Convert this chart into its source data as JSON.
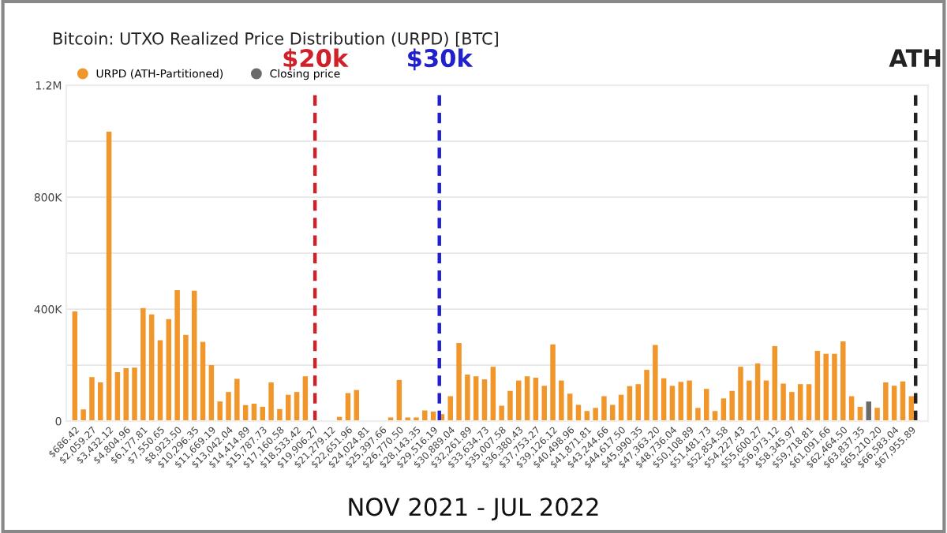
{
  "chart_data": {
    "type": "bar",
    "title": "Bitcoin: UTXO Realized Price Distribution (URPD) [BTC]",
    "x": [
      686.42,
      1372.85,
      2059.27,
      2745.7,
      3432.12,
      4118.54,
      4804.96,
      5491.39,
      6177.81,
      6864.23,
      7550.65,
      8237.08,
      8923.5,
      9609.93,
      10296.35,
      10982.77,
      11669.19,
      12355.62,
      13042.04,
      13728.47,
      14414.89,
      15101.31,
      15787.73,
      16474.16,
      17160.58,
      17847.0,
      18533.42,
      19219.85,
      19906.27,
      20592.7,
      21279.12,
      21965.54,
      22651.96,
      23338.39,
      24024.81,
      24711.23,
      25397.66,
      26084.08,
      26770.5,
      27456.93,
      28143.35,
      28829.77,
      29516.19,
      30202.62,
      30889.04,
      31575.47,
      32261.89,
      32948.31,
      33634.73,
      34321.16,
      35007.58,
      35694.0,
      36380.43,
      37066.85,
      37753.27,
      38439.7,
      39126.12,
      39812.54,
      40498.96,
      41185.39,
      41871.81,
      42558.23,
      43244.66,
      43931.08,
      44617.5,
      45303.93,
      45990.35,
      46676.77,
      47363.2,
      48049.62,
      48736.04,
      49422.47,
      50108.89,
      50795.31,
      51481.73,
      52168.16,
      52854.58,
      53541.0,
      54227.43,
      54913.85,
      55600.27,
      56286.7,
      56973.12,
      57659.54,
      58345.97,
      59032.39,
      59718.81,
      60405.23,
      61091.66,
      61778.08,
      62464.5,
      63150.93,
      63837.35,
      64523.77,
      65210.2,
      65896.62,
      66583.04,
      67269.47,
      67955.89
    ],
    "series": [
      {
        "name": "URPD (ATH-Partitioned)",
        "color": "#f0962a",
        "values": [
          392000,
          42000,
          157000,
          138000,
          1034000,
          175000,
          189000,
          191000,
          404000,
          381000,
          289000,
          364000,
          468000,
          308000,
          466000,
          283000,
          200000,
          70000,
          104000,
          151000,
          57000,
          62000,
          51000,
          138000,
          43000,
          94000,
          104000,
          160000,
          null,
          null,
          0,
          15000,
          100000,
          111000,
          null,
          0,
          0,
          13000,
          147000,
          13000,
          13000,
          38000,
          34000,
          25000,
          89000,
          279000,
          166000,
          160000,
          149000,
          194000,
          55000,
          108000,
          145000,
          160000,
          155000,
          126000,
          274000,
          145000,
          98000,
          58000,
          36000,
          47000,
          89000,
          58000,
          94000,
          125000,
          132000,
          183000,
          272000,
          153000,
          126000,
          140000,
          145000,
          47000,
          115000,
          36000,
          81000,
          108000,
          194000,
          145000,
          206000,
          145000,
          268000,
          134000,
          104000,
          132000,
          132000,
          251000,
          240000,
          240000,
          285000,
          89000,
          51000,
          null,
          47000,
          138000,
          126000,
          142000,
          89000
        ]
      },
      {
        "name": "Closing price",
        "color": "#6b6b6b",
        "values": [
          null,
          null,
          null,
          null,
          null,
          null,
          null,
          null,
          null,
          null,
          null,
          null,
          null,
          null,
          null,
          null,
          null,
          null,
          null,
          null,
          null,
          null,
          null,
          null,
          null,
          null,
          null,
          null,
          null,
          null,
          null,
          null,
          null,
          null,
          null,
          null,
          null,
          null,
          null,
          null,
          null,
          null,
          null,
          null,
          null,
          null,
          null,
          null,
          null,
          null,
          null,
          null,
          null,
          null,
          null,
          null,
          null,
          null,
          null,
          null,
          null,
          null,
          null,
          null,
          null,
          null,
          null,
          null,
          null,
          null,
          null,
          null,
          null,
          null,
          null,
          null,
          null,
          null,
          null,
          null,
          null,
          null,
          null,
          null,
          null,
          null,
          null,
          null,
          null,
          null,
          null,
          null,
          null,
          70000,
          null,
          null,
          null,
          null,
          null
        ]
      }
    ],
    "xlim": [
      0,
      69300
    ],
    "xticks": [
      {
        "value": 686.42,
        "label": "$686.42"
      },
      {
        "value": 2059.27,
        "label": "$2,059.27"
      },
      {
        "value": 3432.12,
        "label": "$3,432.12"
      },
      {
        "value": 4804.96,
        "label": "$4,804.96"
      },
      {
        "value": 6177.81,
        "label": "$6,177.81"
      },
      {
        "value": 7550.65,
        "label": "$7,550.65"
      },
      {
        "value": 8923.5,
        "label": "$8,923.50"
      },
      {
        "value": 10296.35,
        "label": "$10,296.35"
      },
      {
        "value": 11669.19,
        "label": "$11,669.19"
      },
      {
        "value": 13042.04,
        "label": "$13,042.04"
      },
      {
        "value": 14414.89,
        "label": "$14,414.89"
      },
      {
        "value": 15787.73,
        "label": "$15,787.73"
      },
      {
        "value": 17160.58,
        "label": "$17,160.58"
      },
      {
        "value": 18533.42,
        "label": "$18,533.42"
      },
      {
        "value": 19906.27,
        "label": "$19,906.27"
      },
      {
        "value": 21279.12,
        "label": "$21,279.12"
      },
      {
        "value": 22651.96,
        "label": "$22,651.96"
      },
      {
        "value": 24024.81,
        "label": "$24,024.81"
      },
      {
        "value": 25397.66,
        "label": "$25,397.66"
      },
      {
        "value": 26770.5,
        "label": "$26,770.50"
      },
      {
        "value": 28143.35,
        "label": "$28,143.35"
      },
      {
        "value": 29516.19,
        "label": "$29,516.19"
      },
      {
        "value": 30889.04,
        "label": "$30,889.04"
      },
      {
        "value": 32261.89,
        "label": "$32,261.89"
      },
      {
        "value": 33634.73,
        "label": "$33,634.73"
      },
      {
        "value": 35007.58,
        "label": "$35,007.58"
      },
      {
        "value": 36380.43,
        "label": "$36,380.43"
      },
      {
        "value": 37753.27,
        "label": "$37,753.27"
      },
      {
        "value": 39126.12,
        "label": "$39,126.12"
      },
      {
        "value": 40498.96,
        "label": "$40,498.96"
      },
      {
        "value": 41871.81,
        "label": "$41,871.81"
      },
      {
        "value": 43244.66,
        "label": "$43,244.66"
      },
      {
        "value": 44617.5,
        "label": "$44,617.50"
      },
      {
        "value": 45990.35,
        "label": "$45,990.35"
      },
      {
        "value": 47363.2,
        "label": "$47,363.20"
      },
      {
        "value": 48736.04,
        "label": "$48,736.04"
      },
      {
        "value": 50108.89,
        "label": "$50,108.89"
      },
      {
        "value": 51481.73,
        "label": "$51,481.73"
      },
      {
        "value": 52854.58,
        "label": "$52,854.58"
      },
      {
        "value": 54227.43,
        "label": "$54,227.43"
      },
      {
        "value": 55600.27,
        "label": "$55,600.27"
      },
      {
        "value": 56973.12,
        "label": "$56,973.12"
      },
      {
        "value": 58345.97,
        "label": "$58,345.97"
      },
      {
        "value": 59718.81,
        "label": "$59,718.81"
      },
      {
        "value": 61091.66,
        "label": "$61,091.66"
      },
      {
        "value": 62464.5,
        "label": "$62,464.50"
      },
      {
        "value": 63837.35,
        "label": "$63,837.35"
      },
      {
        "value": 65210.2,
        "label": "$65,210.20"
      },
      {
        "value": 66583.04,
        "label": "$66,583.04"
      },
      {
        "value": 67955.89,
        "label": "$67,955.89"
      }
    ],
    "ylim": [
      0,
      1200000
    ],
    "yticks": [
      0,
      {
        "value": 200000,
        "label": null
      },
      {
        "value": 400000,
        "label": "400K"
      },
      {
        "value": 600000,
        "label": null
      },
      {
        "value": 800000,
        "label": "800K"
      },
      {
        "value": 1000000,
        "label": null
      },
      {
        "value": 1200000,
        "label": "1.2M"
      }
    ],
    "grid": "y",
    "legend": "top left",
    "ref_lines": [
      {
        "axis": "x",
        "value": 20000,
        "label": "$20k",
        "color": "#d0202a",
        "line_style": "dashed"
      },
      {
        "axis": "x",
        "value": 30000,
        "label": "$30k",
        "color": "#2020cc",
        "line_style": "dashed"
      },
      {
        "axis": "x",
        "value": 68300,
        "label": "ATH",
        "color": "#222222",
        "line_style": "dashed"
      }
    ],
    "annotations": [
      "NOV 2021 - JUL 2022"
    ]
  }
}
